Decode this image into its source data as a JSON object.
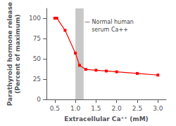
{
  "chart_data": {
    "type": "line",
    "x": [
      0.5,
      0.55,
      0.75,
      1.0,
      1.1,
      1.25,
      1.5,
      1.75,
      2.0,
      2.5,
      3.0
    ],
    "values": [
      100,
      100,
      85,
      57,
      42,
      37,
      36,
      35,
      34,
      32,
      30
    ],
    "color": "#ff0000",
    "marker": "square",
    "xlim": [
      0.3,
      3.2
    ],
    "ylim": [
      0,
      112
    ],
    "xticks": [
      0.5,
      {
        "value": 1.0,
        "label": "1.0"
      },
      1.5,
      {
        "value": 2.0,
        "label": "2.0"
      },
      2.5,
      {
        "value": 3.0,
        "label": "3.0"
      }
    ],
    "yticks": [
      0,
      25,
      50,
      75,
      100
    ],
    "xlabel": "Extracellular Ca⁺⁺ (mM)",
    "ylabel": "Parathyroid hormone release\n(Percent of maximum)",
    "grid": false,
    "spans": [
      {
        "x": [
          1.0,
          1.2
        ],
        "color": "#c8c8c8"
      }
    ],
    "annotations": [
      {
        "text": "— Normal human\n    serum Ca++",
        "x": 1.22,
        "y": 100
      }
    ]
  }
}
